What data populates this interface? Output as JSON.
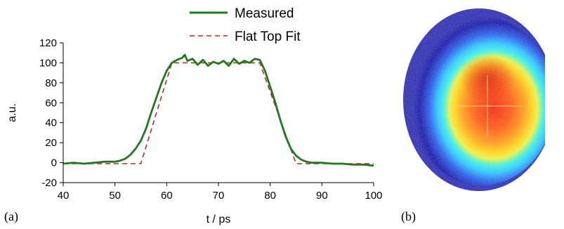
{
  "chart_data": {
    "type": "line",
    "xlabel": "t / ps",
    "ylabel": "a.u.",
    "xlim": [
      40,
      100
    ],
    "ylim": [
      -20,
      120
    ],
    "xticks": [
      40,
      50,
      60,
      70,
      80,
      90,
      100
    ],
    "yticks": [
      -20,
      0,
      20,
      40,
      60,
      80,
      100,
      120
    ],
    "grid": false,
    "legend_position": "top-center",
    "series": [
      {
        "name": "Measured",
        "color": "#1f7a1f",
        "style": "solid",
        "x": [
          40,
          42,
          44,
          46,
          48,
          50,
          51,
          52,
          53,
          54,
          55,
          56,
          57,
          58,
          59,
          60,
          61,
          62,
          63,
          63.5,
          64,
          65,
          66,
          67,
          68,
          69,
          70,
          71,
          72,
          73,
          74,
          75,
          76,
          77,
          78,
          79,
          80,
          81,
          82,
          83,
          84,
          85,
          86,
          87,
          88,
          90,
          92,
          94,
          96,
          98,
          100
        ],
        "y": [
          -1,
          0,
          -1,
          0,
          1,
          1,
          2,
          4,
          8,
          14,
          22,
          34,
          50,
          65,
          80,
          92,
          100,
          103,
          105,
          108,
          102,
          104,
          98,
          103,
          97,
          101,
          99,
          102,
          97,
          104,
          99,
          102,
          100,
          104,
          103,
          92,
          76,
          60,
          42,
          26,
          14,
          7,
          3,
          1,
          0,
          0,
          -1,
          -1,
          -2,
          -2,
          -3
        ]
      },
      {
        "name": "Flat Top Fit",
        "color": "#d62020",
        "style": "dashed",
        "x": [
          40,
          55,
          61,
          78,
          85,
          100
        ],
        "y": [
          -1,
          -1,
          100,
          100,
          -1,
          -1
        ]
      }
    ]
  },
  "panels": {
    "a": "(a)",
    "b": "(b)"
  },
  "beam_profile": {
    "colormap": [
      "#ffffff",
      "#1a1aa8",
      "#2a5ee8",
      "#2ec3ff",
      "#3ef0e0",
      "#e8f04a",
      "#ffd21c",
      "#ff8a1a",
      "#f03010"
    ]
  }
}
